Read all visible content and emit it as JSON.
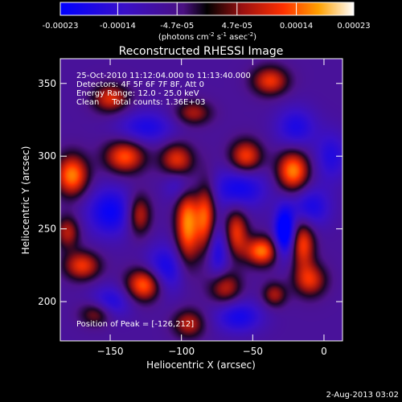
{
  "colorbar": {
    "ticks": [
      "-0.00023",
      "-0.00014",
      "-4.7e-05",
      "4.7e-05",
      "0.00014",
      "0.00023"
    ],
    "tick_values": [
      -0.00023,
      -0.00014,
      -4.7e-05,
      4.7e-05,
      0.00014,
      0.00023
    ],
    "range": [
      -0.00023,
      0.00023
    ],
    "units_main": "(photons cm",
    "units_sup1": "-2",
    "units_mid": " s",
    "units_sup2": "-1",
    "units_tail": " asec",
    "units_sup3": "-2",
    "units_end": ")"
  },
  "chart_data": {
    "type": "heatmap",
    "title": "Reconstructed RHESSI Image",
    "xlabel": "Heliocentric X (arcsec)",
    "ylabel": "Heliocentric Y (arcsec)",
    "xlim": [
      -185,
      13
    ],
    "ylim": [
      173,
      367
    ],
    "xticks": [
      -150,
      -100,
      -50,
      0
    ],
    "xtick_labels": [
      "−150",
      "−100",
      "−50",
      "0"
    ],
    "yticks": [
      200,
      250,
      300,
      350
    ],
    "ytick_labels": [
      "200",
      "250",
      "300",
      "350"
    ],
    "annotations": [
      "25-Oct-2010 11:12:04.000 to 11:13:40.000",
      "Detectors: 4F 5F 6F 7F 8F, Att 0",
      "Energy Range: 12.0 - 25.0 keV",
      "Clean     Total counts: 1.36E+03"
    ],
    "peak_label": "Position of Peak = [-126,212]",
    "sources": [
      {
        "x": -177,
        "y": 287,
        "v": 0.98,
        "sx": 8,
        "sy": 10
      },
      {
        "x": -140,
        "y": 300,
        "v": 0.85,
        "sx": 10,
        "sy": 8
      },
      {
        "x": -104,
        "y": 298,
        "v": 0.7,
        "sx": 8,
        "sy": 8
      },
      {
        "x": -92,
        "y": 330,
        "v": 0.55,
        "sx": 9,
        "sy": 6
      },
      {
        "x": -96,
        "y": 254,
        "v": 1.0,
        "sx": 6,
        "sy": 20
      },
      {
        "x": -83,
        "y": 258,
        "v": 0.85,
        "sx": 5,
        "sy": 18
      },
      {
        "x": -130,
        "y": 260,
        "v": 0.7,
        "sx": 6,
        "sy": 10
      },
      {
        "x": -126,
        "y": 212,
        "v": 1.0,
        "sx": 9,
        "sy": 8
      },
      {
        "x": -170,
        "y": 225,
        "v": 0.75,
        "sx": 9,
        "sy": 7
      },
      {
        "x": -180,
        "y": 248,
        "v": 0.6,
        "sx": 6,
        "sy": 8
      },
      {
        "x": -44,
        "y": 235,
        "v": 0.95,
        "sx": 8,
        "sy": 7
      },
      {
        "x": -62,
        "y": 248,
        "v": 0.75,
        "sx": 6,
        "sy": 12
      },
      {
        "x": -55,
        "y": 300,
        "v": 0.8,
        "sx": 8,
        "sy": 8
      },
      {
        "x": -22,
        "y": 290,
        "v": 1.0,
        "sx": 8,
        "sy": 10
      },
      {
        "x": -15,
        "y": 240,
        "v": 0.8,
        "sx": 6,
        "sy": 12
      },
      {
        "x": -10,
        "y": 215,
        "v": 0.7,
        "sx": 8,
        "sy": 8
      },
      {
        "x": -70,
        "y": 210,
        "v": 0.65,
        "sx": 8,
        "sy": 8
      },
      {
        "x": -95,
        "y": 185,
        "v": 0.6,
        "sx": 8,
        "sy": 7
      },
      {
        "x": -150,
        "y": 340,
        "v": 0.7,
        "sx": 9,
        "sy": 7
      },
      {
        "x": -38,
        "y": 352,
        "v": 0.75,
        "sx": 9,
        "sy": 7
      },
      {
        "x": -35,
        "y": 205,
        "v": 0.55,
        "sx": 6,
        "sy": 6
      },
      {
        "x": -160,
        "y": 192,
        "v": 0.55,
        "sx": 8,
        "sy": 6
      },
      {
        "x": -28,
        "y": 248,
        "v": -1.0,
        "sx": 5,
        "sy": 12
      },
      {
        "x": -112,
        "y": 222,
        "v": -0.6,
        "sx": 10,
        "sy": 12
      },
      {
        "x": -150,
        "y": 262,
        "v": -0.65,
        "sx": 12,
        "sy": 12
      },
      {
        "x": -60,
        "y": 278,
        "v": -0.6,
        "sx": 14,
        "sy": 10
      },
      {
        "x": -75,
        "y": 235,
        "v": -0.55,
        "sx": 6,
        "sy": 14
      },
      {
        "x": -10,
        "y": 265,
        "v": -0.55,
        "sx": 10,
        "sy": 10
      },
      {
        "x": -125,
        "y": 320,
        "v": -0.5,
        "sx": 14,
        "sy": 8
      },
      {
        "x": -60,
        "y": 190,
        "v": -0.55,
        "sx": 12,
        "sy": 8
      },
      {
        "x": -150,
        "y": 200,
        "v": -0.5,
        "sx": 10,
        "sy": 8
      },
      {
        "x": -20,
        "y": 320,
        "v": -0.5,
        "sx": 10,
        "sy": 10
      },
      {
        "x": -100,
        "y": 280,
        "v": -0.45,
        "sx": 8,
        "sy": 8
      },
      {
        "x": 5,
        "y": 300,
        "v": -0.45,
        "sx": 8,
        "sy": 12
      }
    ]
  },
  "footer": {
    "date": "2-Aug-2013 03:02"
  }
}
